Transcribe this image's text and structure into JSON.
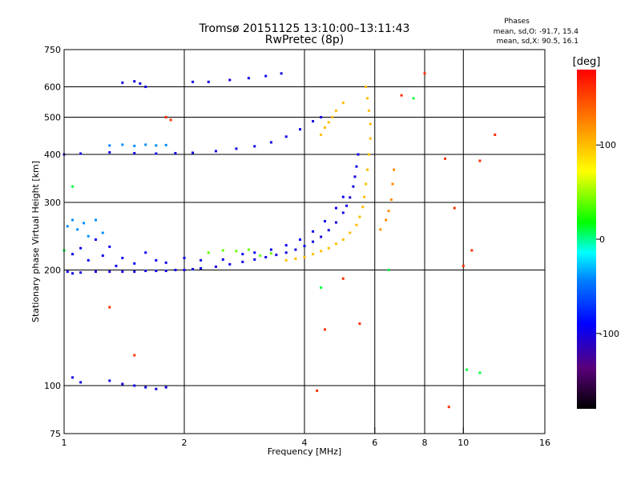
{
  "chart_data": {
    "type": "scatter",
    "title": "Tromsø 20151125 13:10:00–13:11:43",
    "subtitle": "RwPretec (8p)",
    "xlabel": "Frequency [MHz]",
    "ylabel": "Stationary phase Virtual Height [km]",
    "x_scale": "log",
    "y_scale": "log",
    "xlim": [
      1,
      16
    ],
    "ylim": [
      75,
      750
    ],
    "x_ticks": [
      1,
      2,
      4,
      6,
      8,
      10,
      16
    ],
    "x_tick_labels": [
      "1",
      "2",
      "4",
      "6",
      "8",
      "10",
      "16"
    ],
    "y_ticks": [
      75,
      100,
      200,
      300,
      400,
      500,
      600,
      750
    ],
    "y_tick_labels": [
      "75",
      "100",
      "200",
      "300",
      "400",
      "500",
      "600",
      "750"
    ],
    "grid": true,
    "info_box": {
      "title": "Phases",
      "line_o": "mean, sd,O: -91.7, 15.4",
      "line_x": "mean, sd,X:  90.5, 16.1"
    },
    "colorbar": {
      "label": "[deg]",
      "min": -180,
      "max": 180,
      "ticks": [
        100,
        0,
        -100
      ],
      "tick_labels": [
        "100",
        "0",
        "-100"
      ],
      "colormap": "rainbow"
    },
    "series": [
      {
        "values": [
          [
            1.02,
            198
          ],
          [
            1.05,
            196
          ],
          [
            1.1,
            197
          ],
          [
            1.2,
            198
          ],
          [
            1.3,
            198
          ],
          [
            1.4,
            198
          ],
          [
            1.5,
            198
          ],
          [
            1.6,
            199
          ],
          [
            1.7,
            199
          ],
          [
            1.8,
            199
          ],
          [
            1.9,
            200
          ],
          [
            2.0,
            200
          ],
          [
            2.1,
            201
          ],
          [
            2.2,
            202
          ],
          [
            2.4,
            204
          ],
          [
            2.6,
            207
          ],
          [
            2.8,
            210
          ],
          [
            3.0,
            213
          ],
          [
            3.2,
            216
          ],
          [
            3.4,
            219
          ],
          [
            3.6,
            222
          ],
          [
            3.8,
            226
          ],
          [
            4.0,
            231
          ],
          [
            4.2,
            237
          ],
          [
            4.4,
            244
          ],
          [
            4.6,
            254
          ],
          [
            4.8,
            266
          ],
          [
            5.0,
            282
          ],
          [
            5.1,
            294
          ],
          [
            5.2,
            309
          ],
          [
            5.3,
            330
          ],
          [
            5.35,
            350
          ],
          [
            5.4,
            372
          ],
          [
            5.45,
            400
          ]
        ],
        "phase": -100
      },
      {
        "values": [
          [
            1.05,
            220
          ],
          [
            1.1,
            228
          ],
          [
            1.15,
            212
          ],
          [
            1.2,
            240
          ],
          [
            1.25,
            218
          ],
          [
            1.3,
            230
          ],
          [
            1.35,
            205
          ],
          [
            1.4,
            215
          ],
          [
            1.5,
            208
          ],
          [
            1.6,
            222
          ],
          [
            1.7,
            212
          ],
          [
            1.8,
            209
          ],
          [
            2.0,
            215
          ],
          [
            2.2,
            212
          ],
          [
            2.5,
            213
          ],
          [
            2.8,
            220
          ],
          [
            3.0,
            222
          ],
          [
            3.3,
            226
          ],
          [
            3.6,
            232
          ],
          [
            3.9,
            240
          ],
          [
            4.2,
            252
          ],
          [
            4.5,
            268
          ],
          [
            4.8,
            290
          ],
          [
            5.0,
            310
          ]
        ],
        "phase": -95
      },
      {
        "values": [
          [
            1.02,
            260
          ],
          [
            1.05,
            270
          ],
          [
            1.08,
            255
          ],
          [
            1.12,
            265
          ],
          [
            1.15,
            245
          ],
          [
            1.2,
            270
          ],
          [
            1.25,
            250
          ]
        ],
        "phase": -40
      },
      {
        "values": [
          [
            3.6,
            212
          ],
          [
            3.8,
            214
          ],
          [
            4.0,
            216
          ],
          [
            4.2,
            220
          ],
          [
            4.4,
            224
          ],
          [
            4.6,
            228
          ],
          [
            4.8,
            234
          ],
          [
            5.0,
            240
          ],
          [
            5.2,
            250
          ],
          [
            5.4,
            262
          ],
          [
            5.5,
            275
          ],
          [
            5.6,
            292
          ],
          [
            5.65,
            310
          ],
          [
            5.7,
            335
          ],
          [
            5.75,
            365
          ],
          [
            5.8,
            400
          ],
          [
            5.85,
            440
          ],
          [
            5.85,
            480
          ],
          [
            5.8,
            520
          ],
          [
            5.75,
            560
          ],
          [
            5.7,
            600
          ]
        ],
        "phase": 100
      },
      {
        "values": [
          [
            2.3,
            222
          ],
          [
            2.5,
            225
          ],
          [
            2.7,
            224
          ],
          [
            2.9,
            226
          ],
          [
            3.1,
            218
          ],
          [
            3.3,
            221
          ]
        ],
        "phase": 40
      },
      {
        "values": [
          [
            6.2,
            255
          ],
          [
            6.4,
            270
          ],
          [
            6.5,
            285
          ],
          [
            6.6,
            305
          ],
          [
            6.65,
            335
          ],
          [
            6.7,
            365
          ]
        ],
        "phase": 120
      },
      {
        "values": [
          [
            1.0,
            400
          ],
          [
            1.1,
            402
          ],
          [
            1.3,
            405
          ],
          [
            1.5,
            403
          ],
          [
            1.7,
            402
          ],
          [
            1.9,
            403
          ],
          [
            2.1,
            404
          ],
          [
            2.4,
            408
          ],
          [
            2.7,
            414
          ],
          [
            3.0,
            420
          ],
          [
            3.3,
            430
          ],
          [
            3.6,
            445
          ],
          [
            3.9,
            465
          ],
          [
            4.2,
            488
          ],
          [
            4.4,
            500
          ]
        ],
        "phase": -100
      },
      {
        "values": [
          [
            1.3,
            422
          ],
          [
            1.4,
            424
          ],
          [
            1.5,
            421
          ],
          [
            1.6,
            424
          ],
          [
            1.7,
            422
          ],
          [
            1.8,
            423
          ]
        ],
        "phase": -40
      },
      {
        "values": [
          [
            4.4,
            450
          ],
          [
            4.5,
            470
          ],
          [
            4.6,
            485
          ],
          [
            4.7,
            500
          ],
          [
            4.8,
            520
          ],
          [
            5.0,
            545
          ]
        ],
        "phase": 100
      },
      {
        "values": [
          [
            1.4,
            615
          ],
          [
            1.5,
            620
          ],
          [
            1.55,
            612
          ],
          [
            1.6,
            600
          ],
          [
            2.1,
            618
          ],
          [
            2.3,
            618
          ],
          [
            2.6,
            625
          ],
          [
            2.9,
            632
          ],
          [
            3.2,
            640
          ],
          [
            3.5,
            650
          ]
        ],
        "phase": -100
      },
      {
        "values": [
          [
            1.05,
            105
          ],
          [
            1.1,
            102
          ],
          [
            1.3,
            103
          ],
          [
            1.4,
            101
          ],
          [
            1.5,
            100
          ],
          [
            1.6,
            99
          ],
          [
            1.7,
            98
          ],
          [
            1.8,
            99
          ]
        ],
        "phase": -100
      },
      {
        "values": [
          [
            1.8,
            500
          ],
          [
            1.85,
            492
          ],
          [
            9.0,
            390
          ],
          [
            9.5,
            290
          ],
          [
            10.0,
            205
          ],
          [
            10.5,
            225
          ],
          [
            11.0,
            385
          ],
          [
            1.3,
            160
          ],
          [
            1.5,
            120
          ],
          [
            4.3,
            97
          ],
          [
            4.5,
            140
          ],
          [
            5.0,
            190
          ],
          [
            5.5,
            145
          ],
          [
            9.2,
            88
          ],
          [
            7.0,
            570
          ],
          [
            8.0,
            650
          ],
          [
            12.0,
            450
          ]
        ],
        "phase": 160
      },
      {
        "values": [
          [
            1.05,
            330
          ],
          [
            1.0,
            225
          ],
          [
            10.2,
            110
          ],
          [
            11.0,
            108
          ],
          [
            6.5,
            200
          ],
          [
            4.4,
            180
          ],
          [
            7.5,
            560
          ]
        ],
        "phase": 10
      }
    ]
  }
}
